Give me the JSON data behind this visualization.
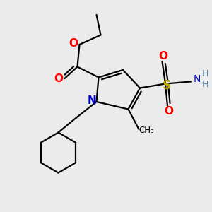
{
  "bg_color": "#ebebeb",
  "atom_colors": {
    "C": "#000000",
    "N": "#0000cc",
    "O": "#ff0000",
    "S": "#bbaa00",
    "H_color": "#5588aa"
  },
  "bond_color": "#000000",
  "bond_width": 1.6,
  "figsize": [
    3.0,
    3.0
  ],
  "dpi": 100,
  "xlim": [
    0,
    10
  ],
  "ylim": [
    0,
    10
  ]
}
